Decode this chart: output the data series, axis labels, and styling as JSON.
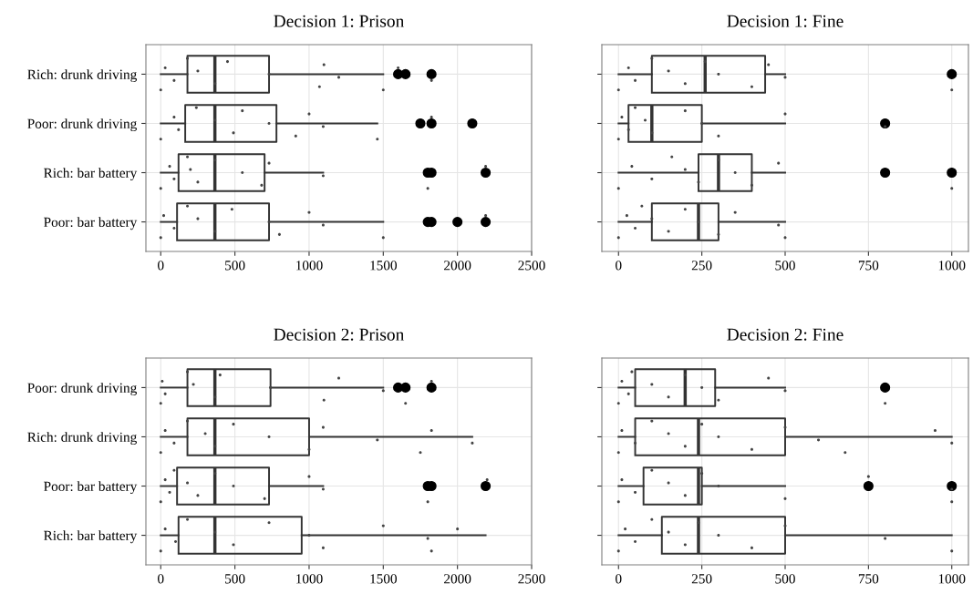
{
  "chart_data": [
    {
      "type": "box",
      "orientation": "horizontal",
      "title": "Decision 1: Prison",
      "categories": [
        "Rich: drunk driving",
        "Poor: drunk driving",
        "Rich: bar battery",
        "Poor: bar battery"
      ],
      "xlim": [
        -100,
        2500
      ],
      "xticks": [
        0,
        500,
        1000,
        1500,
        2000,
        2500
      ],
      "grid": true,
      "color": "#333333",
      "boxes": [
        {
          "low": 0,
          "q1": 180,
          "median": 365,
          "q3": 730,
          "high": 1500,
          "outliers": [
            1600,
            1650,
            1825
          ]
        },
        {
          "low": 0,
          "q1": 165,
          "median": 365,
          "q3": 780,
          "high": 1460,
          "outliers": [
            1750,
            1825,
            2100
          ]
        },
        {
          "low": 0,
          "q1": 120,
          "median": 365,
          "q3": 700,
          "high": 1095,
          "outliers": [
            1800,
            1825,
            2190
          ]
        },
        {
          "low": 0,
          "q1": 110,
          "median": 365,
          "q3": 730,
          "high": 1500,
          "outliers": [
            1800,
            1825,
            2000,
            2190
          ]
        }
      ],
      "series": [
        {
          "type": "scatter",
          "color": "#444444",
          "x": [
            "Rich: drunk driving",
            "Rich: drunk driving",
            "Rich: drunk driving",
            "Rich: drunk driving",
            "Rich: drunk driving",
            "Rich: drunk driving",
            "Rich: drunk driving",
            "Rich: drunk driving",
            "Rich: drunk driving",
            "Rich: drunk driving",
            "Rich: drunk driving",
            "Rich: drunk driving",
            "Rich: drunk driving",
            "Rich: drunk driving"
          ],
          "values": [
            0,
            30,
            90,
            180,
            250,
            365,
            450,
            730,
            1070,
            1100,
            1200,
            1500,
            1600,
            1825
          ]
        },
        {
          "type": "scatter",
          "color": "#444444",
          "x": [
            "Poor: drunk driving",
            "Poor: drunk driving",
            "Poor: drunk driving",
            "Poor: drunk driving",
            "Poor: drunk driving",
            "Poor: drunk driving",
            "Poor: drunk driving",
            "Poor: drunk driving",
            "Poor: drunk driving",
            "Poor: drunk driving",
            "Poor: drunk driving",
            "Poor: drunk driving",
            "Poor: drunk driving"
          ],
          "values": [
            0,
            90,
            120,
            240,
            365,
            490,
            550,
            730,
            910,
            1000,
            1095,
            1460,
            1825
          ]
        },
        {
          "type": "scatter",
          "color": "#444444",
          "x": [
            "Rich: bar battery",
            "Rich: bar battery",
            "Rich: bar battery",
            "Rich: bar battery",
            "Rich: bar battery",
            "Rich: bar battery",
            "Rich: bar battery",
            "Rich: bar battery",
            "Rich: bar battery",
            "Rich: bar battery",
            "Rich: bar battery",
            "Rich: bar battery",
            "Rich: bar battery"
          ],
          "values": [
            0,
            60,
            90,
            180,
            200,
            250,
            365,
            550,
            680,
            730,
            1095,
            1800,
            2190
          ]
        },
        {
          "type": "scatter",
          "color": "#444444",
          "x": [
            "Poor: bar battery",
            "Poor: bar battery",
            "Poor: bar battery",
            "Poor: bar battery",
            "Poor: bar battery",
            "Poor: bar battery",
            "Poor: bar battery",
            "Poor: bar battery",
            "Poor: bar battery",
            "Poor: bar battery",
            "Poor: bar battery",
            "Poor: bar battery",
            "Poor: bar battery"
          ],
          "values": [
            0,
            20,
            90,
            180,
            250,
            365,
            480,
            730,
            800,
            1000,
            1095,
            1500,
            2190
          ]
        }
      ]
    },
    {
      "type": "box",
      "orientation": "horizontal",
      "title": "Decision 1: Fine",
      "categories": [
        "Rich: drunk driving",
        "Poor: drunk driving",
        "Rich: bar battery",
        "Poor: bar battery"
      ],
      "xlim": [
        -50,
        1050
      ],
      "xticks": [
        0,
        250,
        500,
        750,
        1000
      ],
      "grid": true,
      "tick_labels": "x",
      "color": "#333333",
      "boxes": [
        {
          "low": 0,
          "q1": 100,
          "median": 260,
          "q3": 440,
          "high": 500,
          "outliers": [
            1000
          ]
        },
        {
          "low": 0,
          "q1": 30,
          "median": 100,
          "q3": 250,
          "high": 500,
          "outliers": [
            800
          ]
        },
        {
          "low": 0,
          "q1": 240,
          "median": 300,
          "q3": 400,
          "high": 500,
          "outliers": [
            800,
            1000
          ]
        },
        {
          "low": 0,
          "q1": 100,
          "median": 240,
          "q3": 300,
          "high": 500
        }
      ],
      "series": [
        {
          "type": "scatter",
          "color": "#444444",
          "x": [
            "Rich: drunk driving",
            "Rich: drunk driving",
            "Rich: drunk driving",
            "Rich: drunk driving",
            "Rich: drunk driving",
            "Rich: drunk driving",
            "Rich: drunk driving",
            "Rich: drunk driving",
            "Rich: drunk driving",
            "Rich: drunk driving",
            "Rich: drunk driving",
            "Rich: drunk driving"
          ],
          "values": [
            0,
            30,
            50,
            100,
            150,
            200,
            260,
            300,
            400,
            450,
            500,
            1000
          ]
        },
        {
          "type": "scatter",
          "color": "#444444",
          "x": [
            "Poor: drunk driving",
            "Poor: drunk driving",
            "Poor: drunk driving",
            "Poor: drunk driving",
            "Poor: drunk driving",
            "Poor: drunk driving",
            "Poor: drunk driving",
            "Poor: drunk driving",
            "Poor: drunk driving",
            "Poor: drunk driving",
            "Poor: drunk driving"
          ],
          "values": [
            0,
            10,
            30,
            50,
            80,
            100,
            200,
            250,
            300,
            500,
            800
          ]
        },
        {
          "type": "scatter",
          "color": "#444444",
          "x": [
            "Rich: bar battery",
            "Rich: bar battery",
            "Rich: bar battery",
            "Rich: bar battery",
            "Rich: bar battery",
            "Rich: bar battery",
            "Rich: bar battery",
            "Rich: bar battery",
            "Rich: bar battery",
            "Rich: bar battery",
            "Rich: bar battery",
            "Rich: bar battery"
          ],
          "values": [
            0,
            40,
            100,
            160,
            200,
            240,
            300,
            350,
            400,
            480,
            null,
            1000
          ]
        },
        {
          "type": "scatter",
          "color": "#444444",
          "x": [
            "Poor: bar battery",
            "Poor: bar battery",
            "Poor: bar battery",
            "Poor: bar battery",
            "Poor: bar battery",
            "Poor: bar battery",
            "Poor: bar battery",
            "Poor: bar battery",
            "Poor: bar battery",
            "Poor: bar battery",
            "Poor: bar battery",
            "Poor: bar battery"
          ],
          "values": [
            0,
            25,
            50,
            70,
            100,
            150,
            200,
            240,
            300,
            350,
            480,
            500
          ]
        }
      ]
    },
    {
      "type": "box",
      "orientation": "horizontal",
      "title": "Decision 2: Prison",
      "categories": [
        "Poor: drunk driving",
        "Rich: drunk driving",
        "Poor: bar battery",
        "Rich: bar battery"
      ],
      "xlim": [
        -100,
        2500
      ],
      "xticks": [
        0,
        500,
        1000,
        1500,
        2000,
        2500
      ],
      "grid": true,
      "color": "#333333",
      "boxes": [
        {
          "low": 0,
          "q1": 180,
          "median": 365,
          "q3": 740,
          "high": 1500,
          "outliers": [
            1600,
            1650,
            1825
          ]
        },
        {
          "low": 0,
          "q1": 180,
          "median": 365,
          "q3": 1000,
          "high": 2100
        },
        {
          "low": 0,
          "q1": 110,
          "median": 365,
          "q3": 730,
          "high": 1095,
          "outliers": [
            1800,
            1825,
            2190
          ]
        },
        {
          "low": 0,
          "q1": 120,
          "median": 365,
          "q3": 950,
          "high": 2190
        }
      ],
      "series": [
        {
          "type": "scatter",
          "color": "#444444",
          "x": [
            "Poor: drunk driving",
            "Poor: drunk driving",
            "Poor: drunk driving",
            "Poor: drunk driving",
            "Poor: drunk driving",
            "Poor: drunk driving",
            "Poor: drunk driving",
            "Poor: drunk driving",
            "Poor: drunk driving",
            "Poor: drunk driving",
            "Poor: drunk driving",
            "Poor: drunk driving",
            "Poor: drunk driving"
          ],
          "values": [
            0,
            10,
            30,
            180,
            220,
            365,
            400,
            740,
            1100,
            1200,
            1500,
            1650,
            1825
          ]
        },
        {
          "type": "scatter",
          "color": "#444444",
          "x": [
            "Rich: drunk driving",
            "Rich: drunk driving",
            "Rich: drunk driving",
            "Rich: drunk driving",
            "Rich: drunk driving",
            "Rich: drunk driving",
            "Rich: drunk driving",
            "Rich: drunk driving",
            "Rich: drunk driving",
            "Rich: drunk driving",
            "Rich: drunk driving",
            "Rich: drunk driving",
            "Rich: drunk driving",
            "Rich: drunk driving"
          ],
          "values": [
            0,
            30,
            90,
            180,
            300,
            365,
            490,
            730,
            1000,
            1095,
            1460,
            1750,
            1825,
            2100
          ]
        },
        {
          "type": "scatter",
          "color": "#444444",
          "x": [
            "Poor: bar battery",
            "Poor: bar battery",
            "Poor: bar battery",
            "Poor: bar battery",
            "Poor: bar battery",
            "Poor: bar battery",
            "Poor: bar battery",
            "Poor: bar battery",
            "Poor: bar battery",
            "Poor: bar battery",
            "Poor: bar battery",
            "Poor: bar battery",
            "Poor: bar battery"
          ],
          "values": [
            0,
            30,
            60,
            90,
            180,
            250,
            365,
            490,
            700,
            1000,
            1095,
            1800,
            2200
          ]
        },
        {
          "type": "scatter",
          "color": "#444444",
          "x": [
            "Rich: bar battery",
            "Rich: bar battery",
            "Rich: bar battery",
            "Rich: bar battery",
            "Rich: bar battery",
            "Rich: bar battery",
            "Rich: bar battery",
            "Rich: bar battery",
            "Rich: bar battery",
            "Rich: bar battery",
            "Rich: bar battery",
            "Rich: bar battery",
            "Rich: bar battery"
          ],
          "values": [
            0,
            30,
            100,
            180,
            365,
            490,
            730,
            1000,
            1095,
            1500,
            1800,
            1825,
            2000
          ]
        }
      ]
    },
    {
      "type": "box",
      "orientation": "horizontal",
      "title": "Decision 2: Fine",
      "categories": [
        "Poor: drunk driving",
        "Rich: drunk driving",
        "Poor: bar battery",
        "Rich: bar battery"
      ],
      "xlim": [
        -50,
        1050
      ],
      "xticks": [
        0,
        250,
        500,
        750,
        1000
      ],
      "grid": true,
      "tick_labels": "x",
      "color": "#333333",
      "boxes": [
        {
          "low": 0,
          "q1": 50,
          "median": 200,
          "q3": 290,
          "high": 500,
          "outliers": [
            800
          ]
        },
        {
          "low": 0,
          "q1": 50,
          "median": 240,
          "q3": 500,
          "high": 1000
        },
        {
          "low": 0,
          "q1": 75,
          "median": 240,
          "q3": 250,
          "high": 500,
          "outliers": [
            750,
            1000
          ]
        },
        {
          "low": 0,
          "q1": 130,
          "median": 240,
          "q3": 500,
          "high": 1000
        }
      ],
      "series": [
        {
          "type": "scatter",
          "color": "#444444",
          "x": [
            "Poor: drunk driving",
            "Poor: drunk driving",
            "Poor: drunk driving",
            "Poor: drunk driving",
            "Poor: drunk driving",
            "Poor: drunk driving",
            "Poor: drunk driving",
            "Poor: drunk driving",
            "Poor: drunk driving",
            "Poor: drunk driving",
            "Poor: drunk driving",
            "Poor: drunk driving"
          ],
          "values": [
            0,
            10,
            30,
            40,
            100,
            150,
            200,
            250,
            300,
            450,
            500,
            800
          ]
        },
        {
          "type": "scatter",
          "color": "#444444",
          "x": [
            "Rich: drunk driving",
            "Rich: drunk driving",
            "Rich: drunk driving",
            "Rich: drunk driving",
            "Rich: drunk driving",
            "Rich: drunk driving",
            "Rich: drunk driving",
            "Rich: drunk driving",
            "Rich: drunk driving",
            "Rich: drunk driving",
            "Rich: drunk driving",
            "Rich: drunk driving",
            "Rich: drunk driving",
            "Rich: drunk driving"
          ],
          "values": [
            0,
            10,
            50,
            100,
            150,
            200,
            250,
            300,
            400,
            500,
            600,
            680,
            950,
            1000
          ]
        },
        {
          "type": "scatter",
          "color": "#444444",
          "x": [
            "Poor: bar battery",
            "Poor: bar battery",
            "Poor: bar battery",
            "Poor: bar battery",
            "Poor: bar battery",
            "Poor: bar battery",
            "Poor: bar battery",
            "Poor: bar battery",
            "Poor: bar battery",
            "Poor: bar battery",
            "Poor: bar battery",
            "Poor: bar battery"
          ],
          "values": [
            0,
            10,
            50,
            100,
            150,
            200,
            250,
            300,
            500,
            750,
            1000,
            1000
          ]
        },
        {
          "type": "scatter",
          "color": "#444444",
          "x": [
            "Rich: bar battery",
            "Rich: bar battery",
            "Rich: bar battery",
            "Rich: bar battery",
            "Rich: bar battery",
            "Rich: bar battery",
            "Rich: bar battery",
            "Rich: bar battery",
            "Rich: bar battery",
            "Rich: bar battery",
            "Rich: bar battery",
            "Rich: bar battery"
          ],
          "values": [
            0,
            20,
            50,
            100,
            150,
            200,
            240,
            300,
            400,
            500,
            800,
            1000
          ]
        }
      ]
    }
  ]
}
